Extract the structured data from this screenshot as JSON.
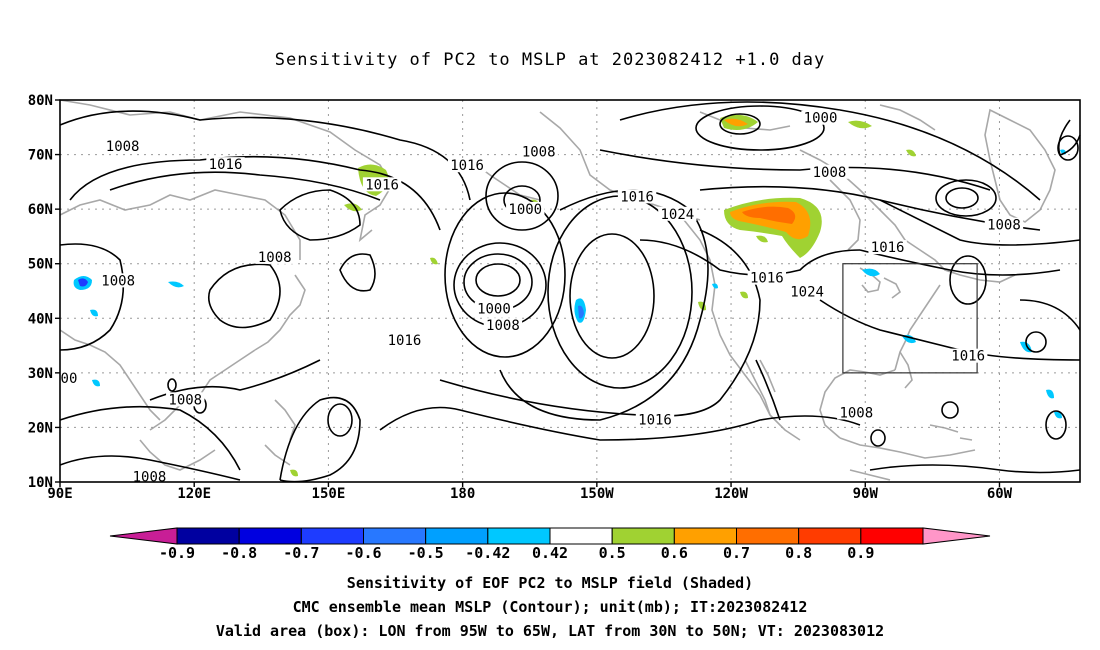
{
  "title": "Sensitivity of PC2 to MSLP at 2023082412 +1.0 day",
  "axes": {
    "lat_labels": [
      "80N",
      "70N",
      "60N",
      "50N",
      "40N",
      "30N",
      "20N",
      "10N"
    ],
    "lon_labels": [
      "90E",
      "120E",
      "150E",
      "180",
      "150W",
      "120W",
      "90W",
      "60W"
    ]
  },
  "contour_labels": [
    {
      "text": "1008",
      "lon": 104,
      "lat": 71.0
    },
    {
      "text": "1016",
      "lon": 127,
      "lat": 67.7
    },
    {
      "text": "1016",
      "lon": 162,
      "lat": 64.0
    },
    {
      "text": "1016",
      "lon": 181,
      "lat": 67.5
    },
    {
      "text": "1008",
      "lon": 197,
      "lat": 70.0
    },
    {
      "text": "1000",
      "lon": 194,
      "lat": 59.5
    },
    {
      "text": "1016",
      "lon": 219,
      "lat": 61.8
    },
    {
      "text": "1024",
      "lon": 228,
      "lat": 58.6
    },
    {
      "text": "1000",
      "lon": 260,
      "lat": 76.2
    },
    {
      "text": "1008",
      "lon": 262,
      "lat": 66.3
    },
    {
      "text": "1016",
      "lon": 275,
      "lat": 52.5
    },
    {
      "text": "1008",
      "lon": 301,
      "lat": 56.6
    },
    {
      "text": "1008",
      "lon": 138,
      "lat": 50.7
    },
    {
      "text": "1008",
      "lon": 103,
      "lat": 46.4
    },
    {
      "text": "1016",
      "lon": 248,
      "lat": 46.9
    },
    {
      "text": "1024",
      "lon": 257,
      "lat": 44.4
    },
    {
      "text": "1016",
      "lon": 167,
      "lat": 35.5
    },
    {
      "text": "1000",
      "lon": 187,
      "lat": 41.2
    },
    {
      "text": "1008",
      "lon": 189,
      "lat": 38.2
    },
    {
      "text": "1016",
      "lon": 293,
      "lat": 32.6
    },
    {
      "text": "1016",
      "lon": 223,
      "lat": 20.9
    },
    {
      "text": "1008",
      "lon": 268,
      "lat": 22.2
    },
    {
      "text": "1008",
      "lon": 118,
      "lat": 24.6
    },
    {
      "text": "00",
      "lon": 92,
      "lat": 28.5
    },
    {
      "text": "1008",
      "lon": 110,
      "lat": 10.5
    }
  ],
  "valid_box": {
    "lon_w": 95,
    "lon_e": 65,
    "lat_s": 30,
    "lat_n": 50
  },
  "colorbar": {
    "colors": [
      "#c81e96",
      "#0000a0",
      "#0000e0",
      "#1e3cff",
      "#2878ff",
      "#00a0ff",
      "#00c8ff",
      "#ffffff",
      "#a0d232",
      "#ffa000",
      "#ff6e00",
      "#ff3c00",
      "#ff0000",
      "#ff96c8"
    ],
    "tick_labels": [
      "-0.9",
      "-0.8",
      "-0.7",
      "-0.6",
      "-0.5",
      "-0.42",
      "0.42",
      "0.5",
      "0.6",
      "0.7",
      "0.8",
      "0.9"
    ]
  },
  "captions": {
    "line1": "Sensitivity of EOF PC2 to MSLP field (Shaded)",
    "line2": "CMC ensemble mean MSLP (Contour); unit(mb); IT:2023082412",
    "line3": "Valid area (box): LON from 95W to 65W, LAT from 30N to 50N; VT: 2023083012"
  }
}
